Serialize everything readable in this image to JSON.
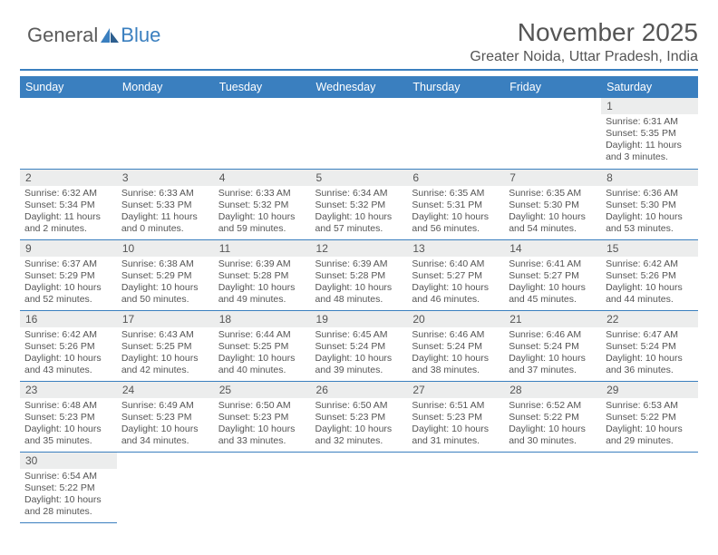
{
  "logo": {
    "text1": "General",
    "text2": "Blue"
  },
  "header": {
    "title": "November 2025",
    "location": "Greater Noida, Uttar Pradesh, India"
  },
  "colors": {
    "accent": "#3a7fbf",
    "text": "#555555",
    "cell_header_bg": "#eceded",
    "background": "#ffffff"
  },
  "weekdays": [
    "Sunday",
    "Monday",
    "Tuesday",
    "Wednesday",
    "Thursday",
    "Friday",
    "Saturday"
  ],
  "layout": {
    "first_weekday_index": 6,
    "days_in_month": 30,
    "rows": 6,
    "cols": 7
  },
  "days": {
    "1": {
      "sunrise": "6:31 AM",
      "sunset": "5:35 PM",
      "daylight": "11 hours and 3 minutes."
    },
    "2": {
      "sunrise": "6:32 AM",
      "sunset": "5:34 PM",
      "daylight": "11 hours and 2 minutes."
    },
    "3": {
      "sunrise": "6:33 AM",
      "sunset": "5:33 PM",
      "daylight": "11 hours and 0 minutes."
    },
    "4": {
      "sunrise": "6:33 AM",
      "sunset": "5:32 PM",
      "daylight": "10 hours and 59 minutes."
    },
    "5": {
      "sunrise": "6:34 AM",
      "sunset": "5:32 PM",
      "daylight": "10 hours and 57 minutes."
    },
    "6": {
      "sunrise": "6:35 AM",
      "sunset": "5:31 PM",
      "daylight": "10 hours and 56 minutes."
    },
    "7": {
      "sunrise": "6:35 AM",
      "sunset": "5:30 PM",
      "daylight": "10 hours and 54 minutes."
    },
    "8": {
      "sunrise": "6:36 AM",
      "sunset": "5:30 PM",
      "daylight": "10 hours and 53 minutes."
    },
    "9": {
      "sunrise": "6:37 AM",
      "sunset": "5:29 PM",
      "daylight": "10 hours and 52 minutes."
    },
    "10": {
      "sunrise": "6:38 AM",
      "sunset": "5:29 PM",
      "daylight": "10 hours and 50 minutes."
    },
    "11": {
      "sunrise": "6:39 AM",
      "sunset": "5:28 PM",
      "daylight": "10 hours and 49 minutes."
    },
    "12": {
      "sunrise": "6:39 AM",
      "sunset": "5:28 PM",
      "daylight": "10 hours and 48 minutes."
    },
    "13": {
      "sunrise": "6:40 AM",
      "sunset": "5:27 PM",
      "daylight": "10 hours and 46 minutes."
    },
    "14": {
      "sunrise": "6:41 AM",
      "sunset": "5:27 PM",
      "daylight": "10 hours and 45 minutes."
    },
    "15": {
      "sunrise": "6:42 AM",
      "sunset": "5:26 PM",
      "daylight": "10 hours and 44 minutes."
    },
    "16": {
      "sunrise": "6:42 AM",
      "sunset": "5:26 PM",
      "daylight": "10 hours and 43 minutes."
    },
    "17": {
      "sunrise": "6:43 AM",
      "sunset": "5:25 PM",
      "daylight": "10 hours and 42 minutes."
    },
    "18": {
      "sunrise": "6:44 AM",
      "sunset": "5:25 PM",
      "daylight": "10 hours and 40 minutes."
    },
    "19": {
      "sunrise": "6:45 AM",
      "sunset": "5:24 PM",
      "daylight": "10 hours and 39 minutes."
    },
    "20": {
      "sunrise": "6:46 AM",
      "sunset": "5:24 PM",
      "daylight": "10 hours and 38 minutes."
    },
    "21": {
      "sunrise": "6:46 AM",
      "sunset": "5:24 PM",
      "daylight": "10 hours and 37 minutes."
    },
    "22": {
      "sunrise": "6:47 AM",
      "sunset": "5:24 PM",
      "daylight": "10 hours and 36 minutes."
    },
    "23": {
      "sunrise": "6:48 AM",
      "sunset": "5:23 PM",
      "daylight": "10 hours and 35 minutes."
    },
    "24": {
      "sunrise": "6:49 AM",
      "sunset": "5:23 PM",
      "daylight": "10 hours and 34 minutes."
    },
    "25": {
      "sunrise": "6:50 AM",
      "sunset": "5:23 PM",
      "daylight": "10 hours and 33 minutes."
    },
    "26": {
      "sunrise": "6:50 AM",
      "sunset": "5:23 PM",
      "daylight": "10 hours and 32 minutes."
    },
    "27": {
      "sunrise": "6:51 AM",
      "sunset": "5:23 PM",
      "daylight": "10 hours and 31 minutes."
    },
    "28": {
      "sunrise": "6:52 AM",
      "sunset": "5:22 PM",
      "daylight": "10 hours and 30 minutes."
    },
    "29": {
      "sunrise": "6:53 AM",
      "sunset": "5:22 PM",
      "daylight": "10 hours and 29 minutes."
    },
    "30": {
      "sunrise": "6:54 AM",
      "sunset": "5:22 PM",
      "daylight": "10 hours and 28 minutes."
    }
  },
  "labels": {
    "sunrise": "Sunrise: ",
    "sunset": "Sunset: ",
    "daylight": "Daylight: "
  }
}
